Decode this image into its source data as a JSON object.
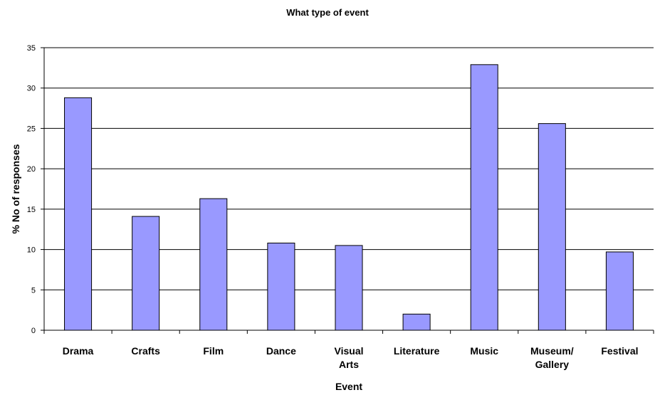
{
  "chart_data": {
    "type": "bar",
    "title": "What type of event",
    "xlabel": "Event",
    "ylabel": "% No of responses",
    "categories": [
      [
        "Drama"
      ],
      [
        "Crafts"
      ],
      [
        "Film"
      ],
      [
        "Dance"
      ],
      [
        "Visual",
        "Arts"
      ],
      [
        "Literature"
      ],
      [
        "Music"
      ],
      [
        "Museum/",
        "Gallery"
      ],
      [
        "Festival"
      ]
    ],
    "values": [
      28.8,
      14.1,
      16.3,
      10.8,
      10.5,
      2.0,
      32.9,
      25.6,
      9.7
    ],
    "ylim": [
      0,
      35
    ],
    "yticks": [
      0,
      5,
      10,
      15,
      20,
      25,
      30,
      35
    ],
    "grid": true,
    "bar_color": "#9999ff",
    "bar_edge": "#000000"
  }
}
